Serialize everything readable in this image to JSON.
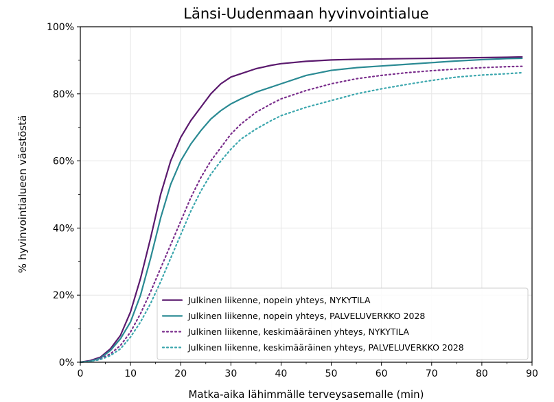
{
  "chart_data": {
    "type": "line",
    "title": "Länsi-Uudenmaan hyvinvointialue",
    "xlabel": "Matka-aika lähimmälle terveysasemalle (min)",
    "ylabel": "% hyvinvointialueen väestöstä",
    "xlim": [
      0,
      90
    ],
    "ylim": [
      0,
      100
    ],
    "xticks": [
      "0",
      "10",
      "20",
      "30",
      "40",
      "50",
      "60",
      "70",
      "80",
      "90"
    ],
    "yticks": [
      "0%",
      "20%",
      "40%",
      "60%",
      "80%",
      "100%"
    ],
    "grid": true,
    "legend_position": "lower-right",
    "series": [
      {
        "name": "Julkinen liikenne, nopein yhteys, NYKYTILA",
        "color": "#5b1a6e",
        "style": "solid",
        "x": [
          0,
          2,
          4,
          6,
          8,
          10,
          12,
          14,
          16,
          18,
          20,
          22,
          24,
          26,
          28,
          30,
          32,
          35,
          38,
          40,
          45,
          50,
          55,
          60,
          65,
          70,
          75,
          80,
          85,
          88
        ],
        "y": [
          0,
          0.5,
          1.5,
          4,
          8,
          15,
          25,
          37,
          50,
          60,
          67,
          72,
          76,
          80,
          83,
          85,
          86,
          87.5,
          88.5,
          89,
          89.7,
          90.1,
          90.3,
          90.4,
          90.5,
          90.6,
          90.7,
          90.8,
          90.9,
          91
        ]
      },
      {
        "name": "Julkinen liikenne, nopein yhteys, PALVELUVERKKO 2028",
        "color": "#2a8a93",
        "style": "solid",
        "x": [
          0,
          2,
          4,
          6,
          8,
          10,
          12,
          14,
          16,
          18,
          20,
          22,
          24,
          26,
          28,
          30,
          32,
          35,
          38,
          40,
          45,
          50,
          55,
          60,
          65,
          70,
          75,
          80,
          85,
          88
        ],
        "y": [
          0,
          0.3,
          1.2,
          3.5,
          7,
          12,
          20,
          31,
          43,
          53,
          60,
          65,
          69,
          72.5,
          75,
          77,
          78.5,
          80.5,
          82,
          83,
          85.5,
          87,
          87.8,
          88.3,
          88.8,
          89.3,
          89.8,
          90.2,
          90.5,
          90.6
        ]
      },
      {
        "name": "Julkinen liikenne, keskimääräinen yhteys, NYKYTILA",
        "color": "#7a2e8c",
        "style": "dotted",
        "x": [
          0,
          2,
          4,
          6,
          8,
          10,
          12,
          14,
          16,
          18,
          20,
          22,
          24,
          26,
          28,
          30,
          32,
          35,
          38,
          40,
          45,
          50,
          55,
          60,
          65,
          70,
          75,
          80,
          85,
          88
        ],
        "y": [
          0,
          0.3,
          1,
          2.5,
          5,
          9,
          14.5,
          21,
          28,
          35,
          42,
          49,
          55,
          60,
          64,
          68,
          71,
          74.5,
          77,
          78.5,
          81,
          83,
          84.5,
          85.5,
          86.3,
          86.9,
          87.4,
          87.8,
          88.1,
          88.2
        ]
      },
      {
        "name": "Julkinen liikenne, keskimääräinen yhteys, PALVELUVERKKO 2028",
        "color": "#3aa6ad",
        "style": "dotted",
        "x": [
          0,
          2,
          4,
          6,
          8,
          10,
          12,
          14,
          16,
          18,
          20,
          22,
          24,
          26,
          28,
          30,
          32,
          35,
          38,
          40,
          45,
          50,
          55,
          60,
          65,
          70,
          75,
          80,
          85,
          88
        ],
        "y": [
          0,
          0.3,
          0.8,
          2,
          4,
          7.5,
          12,
          17.5,
          24,
          31,
          38,
          45,
          51,
          56,
          60,
          63.5,
          66.5,
          69.5,
          72,
          73.5,
          76,
          78,
          80,
          81.5,
          82.8,
          84,
          85,
          85.6,
          86,
          86.3
        ]
      }
    ]
  }
}
